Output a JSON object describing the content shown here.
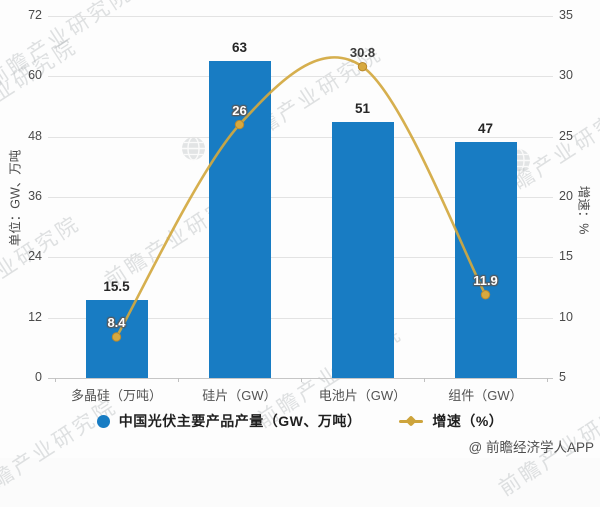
{
  "chart_data": {
    "type": "bar+line",
    "title": "",
    "categories": [
      "多晶硅（万吨）",
      "硅片（GW）",
      "电池片（GW）",
      "组件（GW）"
    ],
    "series": [
      {
        "name": "中国光伏主要产品产量（GW、万吨）",
        "type": "bar",
        "axis": "left",
        "values": [
          15.5,
          63,
          51,
          47
        ],
        "color": "#187cc3"
      },
      {
        "name": "增速（%）",
        "type": "line",
        "axis": "right",
        "values": [
          8.4,
          26,
          30.8,
          11.9
        ],
        "color": "#d2a83f",
        "marker_color": "#d7a93f"
      }
    ],
    "left_axis": {
      "title": "单位：GW、万吨",
      "min": 0,
      "max": 72,
      "ticks": [
        72,
        60,
        48,
        36,
        24,
        12,
        0
      ]
    },
    "right_axis": {
      "title": "增速：%",
      "min": 5,
      "max": 35,
      "ticks": [
        35,
        30,
        25,
        20,
        15,
        10,
        5
      ]
    },
    "grid": true,
    "legend_position": "bottom"
  },
  "legend": {
    "items": [
      {
        "label": "中国光伏主要产品产量（GW、万吨）",
        "marker": "circle",
        "color": "#187cc3"
      },
      {
        "label": "增速（%）",
        "marker": "line-diamond",
        "color": "#cda43c"
      }
    ]
  },
  "watermark": {
    "text": "前瞻产业研究院"
  },
  "credit": "@ 前瞻经济学人APP",
  "colors": {
    "bar": "#187cc3",
    "line": "#d2a83f",
    "grid": "#e3e3e3",
    "axis_line": "#c6c6c6",
    "tick_text": "#4a4a4a"
  }
}
